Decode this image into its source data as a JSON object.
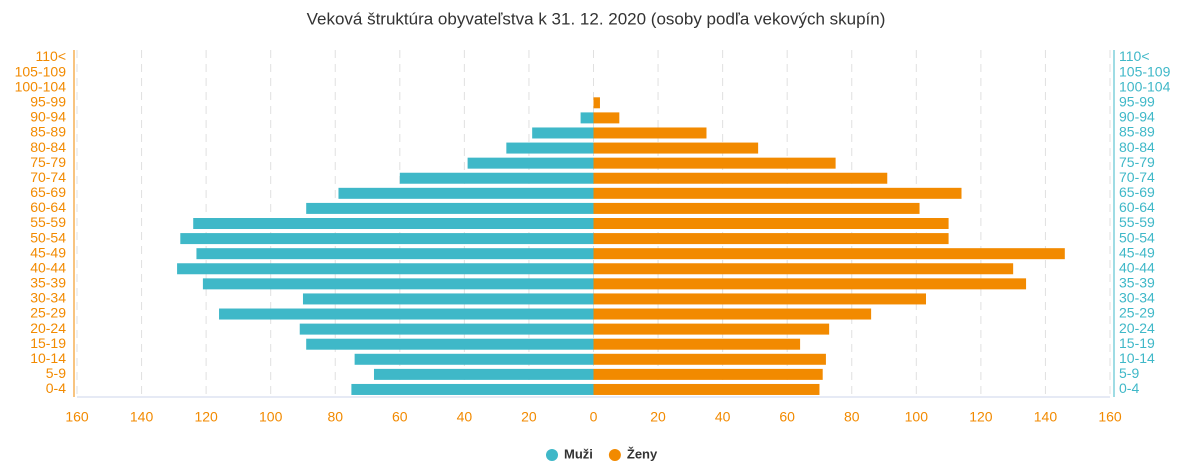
{
  "chart_data": {
    "type": "pyramid",
    "title": "Veková štruktúra obyvateľstva k 31. 12. 2020 (osoby podľa vekových skupín)",
    "categories": [
      "0-4",
      "5-9",
      "10-14",
      "15-19",
      "20-24",
      "25-29",
      "30-34",
      "35-39",
      "40-44",
      "45-49",
      "50-54",
      "55-59",
      "60-64",
      "65-69",
      "70-74",
      "75-79",
      "80-84",
      "85-89",
      "90-94",
      "95-99",
      "100-104",
      "105-109",
      "110<"
    ],
    "series": [
      {
        "name": "Muži",
        "color": "#3fb8c8",
        "values": [
          -75,
          -68,
          -74,
          -89,
          -91,
          -116,
          -90,
          -121,
          -129,
          -123,
          -128,
          -124,
          -89,
          -79,
          -60,
          -39,
          -27,
          -19,
          -4,
          0,
          0,
          0,
          0
        ]
      },
      {
        "name": "Ženy",
        "color": "#f28a00",
        "values": [
          70,
          71,
          72,
          64,
          73,
          86,
          103,
          134,
          130,
          146,
          110,
          110,
          101,
          114,
          91,
          75,
          51,
          35,
          8,
          2,
          0,
          0,
          0
        ]
      }
    ],
    "xlim": [
      -160,
      160
    ],
    "xticks": [
      {
        "value": -160,
        "label": "160"
      },
      {
        "value": -140,
        "label": "140"
      },
      {
        "value": -120,
        "label": "120"
      },
      {
        "value": -100,
        "label": "100"
      },
      {
        "value": -80,
        "label": "80"
      },
      {
        "value": -60,
        "label": "60"
      },
      {
        "value": -40,
        "label": "40"
      },
      {
        "value": -20,
        "label": "20"
      },
      0,
      20,
      40,
      60,
      80,
      100,
      120,
      140,
      160
    ],
    "grid": true,
    "legend": "bottom"
  }
}
